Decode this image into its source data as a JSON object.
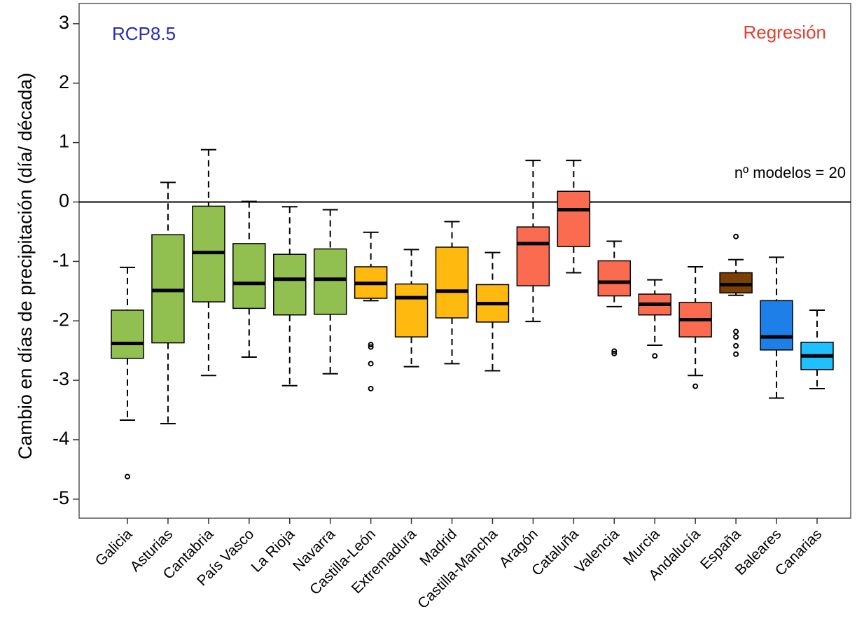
{
  "chart_data": {
    "type": "box",
    "ylabel": "Cambio en días de precipitación (día/ década)",
    "annotations": [
      {
        "text": "RCP8.5",
        "color": "#2a2ab4"
      },
      {
        "text": "Regresión",
        "color": "#e04030"
      },
      {
        "text": "nº modelos = 20",
        "color": "#000000"
      }
    ],
    "reference_line": 0,
    "ylim": [
      -5.32,
      3.34
    ],
    "yticks": [
      -5,
      -4,
      -3,
      -2,
      -1,
      0,
      1,
      2,
      3
    ],
    "categories": [
      "Galicia",
      "Asturias",
      "Cantabria",
      "País Vasco",
      "La Rioja",
      "Navarra",
      "Castilla-León",
      "Extremadura",
      "Madrid",
      "Castilla-Mancha",
      "Aragón",
      "Cataluña",
      "Valencia",
      "Murcia",
      "Andalucía",
      "España",
      "Baleares",
      "Canarias"
    ],
    "boxes": [
      {
        "min": -3.67,
        "q1": -2.63,
        "median": -2.38,
        "q3": -1.82,
        "max": -1.1,
        "outliers": [
          -4.62
        ],
        "color": "#92c050"
      },
      {
        "min": -3.73,
        "q1": -2.37,
        "median": -1.49,
        "q3": -0.55,
        "max": 0.33,
        "outliers": [],
        "color": "#92c050"
      },
      {
        "min": -2.92,
        "q1": -1.68,
        "median": -0.85,
        "q3": -0.07,
        "max": 0.88,
        "outliers": [],
        "color": "#92c050"
      },
      {
        "min": -2.61,
        "q1": -1.79,
        "median": -1.37,
        "q3": -0.7,
        "max": 0.01,
        "outliers": [],
        "color": "#92c050"
      },
      {
        "min": -3.09,
        "q1": -1.9,
        "median": -1.3,
        "q3": -0.88,
        "max": -0.08,
        "outliers": [],
        "color": "#92c050"
      },
      {
        "min": -2.89,
        "q1": -1.89,
        "median": -1.3,
        "q3": -0.79,
        "max": -0.13,
        "outliers": [],
        "color": "#92c050"
      },
      {
        "min": -1.66,
        "q1": -1.62,
        "median": -1.37,
        "q3": -1.09,
        "max": -0.51,
        "outliers": [
          -2.4,
          -2.44,
          -2.72,
          -3.14
        ],
        "color": "#ffb90f"
      },
      {
        "min": -2.77,
        "q1": -2.27,
        "median": -1.61,
        "q3": -1.38,
        "max": -0.8,
        "outliers": [],
        "color": "#ffb90f"
      },
      {
        "min": -2.72,
        "q1": -1.95,
        "median": -1.5,
        "q3": -0.76,
        "max": -0.33,
        "outliers": [],
        "color": "#ffb90f"
      },
      {
        "min": -2.84,
        "q1": -2.02,
        "median": -1.71,
        "q3": -1.39,
        "max": -0.85,
        "outliers": [],
        "color": "#ffb90f"
      },
      {
        "min": -2.01,
        "q1": -1.41,
        "median": -0.7,
        "q3": -0.42,
        "max": 0.7,
        "outliers": [],
        "color": "#fa6b50"
      },
      {
        "min": -1.19,
        "q1": -0.75,
        "median": -0.13,
        "q3": 0.18,
        "max": 0.7,
        "outliers": [],
        "color": "#fa6b50"
      },
      {
        "min": -1.76,
        "q1": -1.58,
        "median": -1.35,
        "q3": -0.99,
        "max": -0.66,
        "outliers": [
          -2.51,
          -2.55
        ],
        "color": "#fa6b50"
      },
      {
        "min": -2.41,
        "q1": -1.9,
        "median": -1.72,
        "q3": -1.55,
        "max": -1.31,
        "outliers": [
          -2.59
        ],
        "color": "#fa6b50"
      },
      {
        "min": -2.92,
        "q1": -2.27,
        "median": -1.98,
        "q3": -1.69,
        "max": -1.09,
        "outliers": [
          -3.1
        ],
        "color": "#fa6b50"
      },
      {
        "min": -1.57,
        "q1": -1.53,
        "median": -1.39,
        "q3": -1.19,
        "max": -0.97,
        "outliers": [
          -0.58,
          -2.18,
          -2.27,
          -2.42,
          -2.56
        ],
        "color": "#7b3f00"
      },
      {
        "min": -3.3,
        "q1": -2.49,
        "median": -2.27,
        "q3": -1.66,
        "max": -0.93,
        "outliers": [],
        "color": "#1e7fe8"
      },
      {
        "min": -3.14,
        "q1": -2.82,
        "median": -2.59,
        "q3": -2.36,
        "max": -1.82,
        "outliers": [],
        "color": "#1ec0ff"
      }
    ]
  }
}
